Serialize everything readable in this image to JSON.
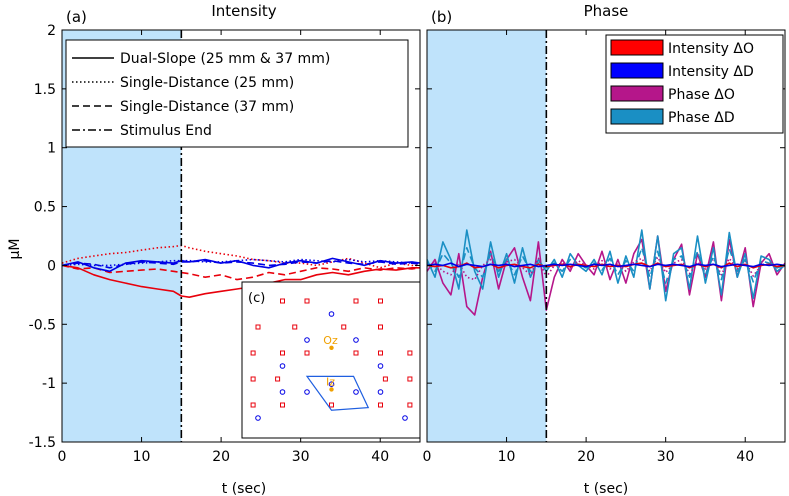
{
  "chart_data": [
    {
      "panel": "(a)",
      "type": "line",
      "title": "Intensity",
      "xlabel": "t (sec)",
      "ylabel": "µM",
      "xlim": [
        0,
        45
      ],
      "ylim": [
        -1.5,
        2
      ],
      "xticks": [
        0,
        10,
        20,
        30,
        40
      ],
      "yticks": [
        -1.5,
        -1,
        -0.5,
        0,
        0.5,
        1,
        1.5,
        2
      ],
      "ytick_labels": [
        "-1.5",
        "-1",
        "-0.5",
        "0",
        "0.5",
        "1",
        "1.5",
        "2"
      ],
      "grid": false,
      "stimulus_band": [
        0,
        15
      ],
      "stimulus_end": 15,
      "legend": {
        "placement": "top-left",
        "entries": [
          {
            "label": "Dual-Slope (25 mm & 37 mm)",
            "style": "solid"
          },
          {
            "label": "Single-Distance (25 mm)",
            "style": "dotted"
          },
          {
            "label": "Single-Distance (37 mm)",
            "style": "dashed"
          },
          {
            "label": "Stimulus End",
            "style": "dashdot"
          }
        ]
      },
      "x": [
        0,
        2,
        4,
        6,
        8,
        10,
        12,
        14,
        15,
        16,
        18,
        20,
        22,
        24,
        26,
        28,
        30,
        32,
        34,
        36,
        38,
        40,
        42,
        44,
        45
      ],
      "series": [
        {
          "quantity": "ΔO",
          "method": "Dual-Slope",
          "color": "#e8000b",
          "style": "solid",
          "values": [
            0,
            -0.02,
            -0.08,
            -0.12,
            -0.15,
            -0.18,
            -0.2,
            -0.22,
            -0.26,
            -0.27,
            -0.24,
            -0.22,
            -0.2,
            -0.18,
            -0.15,
            -0.12,
            -0.12,
            -0.08,
            -0.06,
            -0.08,
            -0.05,
            -0.03,
            -0.04,
            -0.02,
            -0.02
          ]
        },
        {
          "quantity": "ΔO",
          "method": "Single-Distance (25 mm)",
          "color": "#e8000b",
          "style": "dotted",
          "values": [
            0.02,
            0.06,
            0.08,
            0.1,
            0.11,
            0.13,
            0.15,
            0.16,
            0.17,
            0.15,
            0.12,
            0.1,
            0.08,
            0.05,
            0.04,
            0.02,
            0.02,
            0.0,
            0.03,
            0.06,
            0.02,
            -0.02,
            0.02,
            0.0,
            0.0
          ]
        },
        {
          "quantity": "ΔO",
          "method": "Single-Distance (37 mm)",
          "color": "#e8000b",
          "style": "dashed",
          "values": [
            0,
            -0.03,
            -0.02,
            -0.06,
            -0.05,
            -0.04,
            -0.03,
            -0.05,
            -0.06,
            -0.07,
            -0.1,
            -0.08,
            -0.12,
            -0.1,
            -0.06,
            -0.08,
            -0.05,
            -0.02,
            -0.03,
            -0.05,
            -0.02,
            -0.04,
            -0.02,
            -0.03,
            -0.02
          ]
        },
        {
          "quantity": "ΔD",
          "method": "Dual-Slope",
          "color": "#0000e6",
          "style": "solid",
          "values": [
            0,
            0.03,
            -0.02,
            -0.05,
            0.02,
            0.04,
            0.03,
            0.02,
            0.04,
            0.03,
            0.05,
            0.02,
            0.04,
            0.0,
            -0.02,
            0.02,
            0.04,
            0.02,
            0.06,
            0.03,
            0.0,
            0.04,
            0.02,
            0.03,
            0.02
          ]
        },
        {
          "quantity": "ΔD",
          "method": "Single-Distance (25 mm)",
          "color": "#0000e6",
          "style": "dotted",
          "values": [
            0,
            0.01,
            0.0,
            0.0,
            0.01,
            0.02,
            0.03,
            0.04,
            0.04,
            0.04,
            0.03,
            0.03,
            0.04,
            0.05,
            0.04,
            0.03,
            0.05,
            0.04,
            0.03,
            0.05,
            0.03,
            0.04,
            0.03,
            0.02,
            0.02
          ]
        },
        {
          "quantity": "ΔD",
          "method": "Single-Distance (37 mm)",
          "color": "#0000e6",
          "style": "dashed",
          "values": [
            0,
            0.02,
            0.01,
            -0.02,
            0.01,
            0.03,
            0.02,
            0.01,
            0.03,
            0.03,
            0.04,
            0.02,
            0.03,
            0.02,
            0.0,
            0.01,
            0.03,
            0.02,
            0.04,
            0.02,
            0.01,
            0.03,
            0.01,
            0.02,
            0.01
          ]
        }
      ]
    },
    {
      "panel": "(b)",
      "type": "line",
      "title": "Phase",
      "xlabel": "t (sec)",
      "xlim": [
        0,
        45
      ],
      "ylim": [
        -1.5,
        2
      ],
      "xticks": [
        0,
        10,
        20,
        30,
        40
      ],
      "grid": false,
      "stimulus_band": [
        0,
        15
      ],
      "stimulus_end": 15,
      "legend": {
        "placement": "top-right",
        "entries": [
          {
            "label": "Intensity   ΔO",
            "color": "#ff0000"
          },
          {
            "label": "Intensity   ΔD",
            "color": "#0000ff"
          },
          {
            "label": "Phase  ΔO",
            "color": "#b5168a"
          },
          {
            "label": "Phase  ΔD",
            "color": "#1a8fc4"
          }
        ]
      },
      "x": [
        0,
        1,
        2,
        3,
        4,
        5,
        6,
        7,
        8,
        9,
        10,
        11,
        12,
        13,
        14,
        15,
        16,
        17,
        18,
        19,
        20,
        21,
        22,
        23,
        24,
        25,
        26,
        27,
        28,
        29,
        30,
        31,
        32,
        33,
        34,
        35,
        36,
        37,
        38,
        39,
        40,
        41,
        42,
        43,
        44,
        45
      ],
      "series": [
        {
          "quantity": "Phase ΔO",
          "method": "Dual-Slope",
          "color": "#b5168a",
          "style": "solid",
          "values": [
            -0.05,
            0.05,
            -0.15,
            -0.25,
            0.1,
            -0.35,
            -0.42,
            -0.1,
            0.12,
            -0.2,
            0.05,
            0.15,
            -0.1,
            -0.3,
            0.2,
            -0.38,
            -0.1,
            0.05,
            -0.05,
            0.1,
            0.0,
            -0.08,
            0.12,
            -0.12,
            0.05,
            -0.15,
            0.1,
            0.22,
            -0.2,
            0.25,
            -0.22,
            0.05,
            0.18,
            -0.25,
            0.1,
            -0.1,
            0.2,
            -0.3,
            0.22,
            -0.1,
            0.15,
            -0.35,
            0.02,
            0.1,
            -0.08,
            0.02
          ]
        },
        {
          "quantity": "Phase ΔD",
          "method": "Dual-Slope",
          "color": "#1a8fc4",
          "style": "solid",
          "values": [
            0.05,
            -0.1,
            0.2,
            0.05,
            -0.2,
            0.3,
            -0.05,
            -0.2,
            0.2,
            -0.1,
            0.1,
            -0.15,
            0.15,
            -0.1,
            0.05,
            -0.05,
            0.05,
            -0.1,
            0.1,
            0.0,
            -0.05,
            0.05,
            -0.08,
            0.12,
            -0.15,
            0.08,
            -0.1,
            0.3,
            -0.2,
            0.25,
            -0.3,
            0.1,
            0.15,
            -0.2,
            0.25,
            -0.15,
            0.15,
            -0.25,
            0.28,
            -0.1,
            0.1,
            -0.28,
            0.08,
            0.05,
            -0.05,
            0.0
          ]
        },
        {
          "quantity": "Phase ΔO",
          "method": "Single-Distance (25 mm)",
          "color": "#b5168a",
          "style": "dotted",
          "values": [
            0,
            0.02,
            -0.05,
            -0.08,
            0.02,
            -0.1,
            -0.12,
            0.0,
            0.05,
            -0.05,
            0.03,
            0.05,
            -0.02,
            -0.08,
            0.06,
            -0.1,
            0.0,
            0.02,
            -0.02,
            0.04,
            0.0,
            -0.03,
            0.04,
            -0.03,
            0.02,
            -0.05,
            0.03,
            0.06,
            -0.05,
            0.07,
            -0.06,
            0.02,
            0.05,
            -0.07,
            0.03,
            -0.03,
            0.06,
            -0.08,
            0.06,
            -0.03,
            0.04,
            -0.09,
            0.0,
            0.03,
            -0.02,
            0.0
          ]
        },
        {
          "quantity": "Phase ΔD",
          "method": "Single-Distance (37 mm)",
          "color": "#1a8fc4",
          "style": "dashed",
          "values": [
            0.02,
            -0.05,
            0.1,
            0.02,
            -0.1,
            0.15,
            -0.02,
            -0.1,
            0.1,
            -0.05,
            0.05,
            -0.08,
            0.08,
            -0.05,
            0.02,
            -0.02,
            0.02,
            -0.05,
            0.05,
            0.0,
            -0.02,
            0.02,
            -0.04,
            0.06,
            -0.08,
            0.04,
            -0.05,
            0.15,
            -0.1,
            0.12,
            -0.15,
            0.05,
            0.08,
            -0.1,
            0.12,
            -0.08,
            0.08,
            -0.12,
            0.14,
            -0.05,
            0.05,
            -0.14,
            0.04,
            0.02,
            -0.02,
            0.0
          ]
        },
        {
          "quantity": "Intensity ΔO",
          "method": "Dual-Slope",
          "color": "#e8000b",
          "style": "solid",
          "values": [
            0,
            -0.01,
            0.0,
            -0.02,
            -0.01,
            0.02,
            -0.02,
            -0.01,
            0.01,
            -0.02,
            0.0,
            0.01,
            -0.01,
            -0.02,
            0.01,
            -0.01,
            0.0,
            0.01,
            -0.01,
            0.01,
            0.0,
            -0.01,
            0.01,
            -0.01,
            0.0,
            -0.01,
            0.01,
            0.02,
            -0.01,
            0.02,
            -0.01,
            0.0,
            0.01,
            -0.02,
            0.01,
            -0.01,
            0.01,
            -0.02,
            0.02,
            -0.01,
            0.01,
            -0.02,
            0.0,
            0.01,
            -0.01,
            0.0
          ]
        },
        {
          "quantity": "Intensity ΔD",
          "method": "Dual-Slope",
          "color": "#0000e6",
          "style": "solid",
          "values": [
            0,
            0.01,
            0.0,
            0.02,
            -0.01,
            0.01,
            0.0,
            -0.01,
            0.01,
            0.0,
            0.01,
            -0.01,
            0.0,
            0.01,
            -0.01,
            0.0,
            0.01,
            0.0,
            0.01,
            0.0,
            -0.01,
            0.01,
            0.0,
            0.01,
            -0.01,
            0.0,
            0.01,
            0.0,
            -0.01,
            0.01,
            0.0,
            0.01,
            0.0,
            -0.01,
            0.01,
            0.0,
            0.01,
            -0.01,
            0.0,
            0.01,
            0.0,
            -0.01,
            0.01,
            0.0,
            0.01,
            0.0
          ]
        }
      ]
    },
    {
      "panel": "(c)",
      "type": "scatter",
      "sources": [
        [
          1,
          1
        ],
        [
          2,
          1
        ],
        [
          4,
          1
        ],
        [
          5,
          1
        ],
        [
          0,
          2
        ],
        [
          1.5,
          2
        ],
        [
          3.5,
          2
        ],
        [
          5,
          2
        ],
        [
          -0.2,
          3
        ],
        [
          1,
          3
        ],
        [
          2,
          3
        ],
        [
          4,
          3
        ],
        [
          5,
          3
        ],
        [
          6.2,
          3
        ],
        [
          -0.2,
          4
        ],
        [
          0.8,
          4
        ],
        [
          5.2,
          4
        ],
        [
          6.2,
          4
        ],
        [
          -0.2,
          5
        ],
        [
          1,
          5
        ],
        [
          3,
          5
        ],
        [
          5,
          5
        ],
        [
          6.2,
          5
        ]
      ],
      "detectors": [
        [
          3,
          1.5
        ],
        [
          2,
          2.5
        ],
        [
          4,
          2.5
        ],
        [
          1,
          3.5
        ],
        [
          5,
          3.5
        ],
        [
          1,
          4.5
        ],
        [
          2,
          4.5
        ],
        [
          4,
          4.5
        ],
        [
          5,
          4.5
        ],
        [
          3,
          4.2
        ],
        [
          0,
          5.5
        ],
        [
          6,
          5.5
        ]
      ],
      "landmarks": [
        {
          "label": "Oz",
          "x": 3,
          "y": 2.8
        },
        {
          "label": "Iz",
          "x": 3,
          "y": 4.4
        }
      ],
      "ds_quad": [
        [
          2,
          3.9
        ],
        [
          3.9,
          3.9
        ],
        [
          4.5,
          5.1
        ],
        [
          3,
          5.2
        ]
      ]
    }
  ]
}
